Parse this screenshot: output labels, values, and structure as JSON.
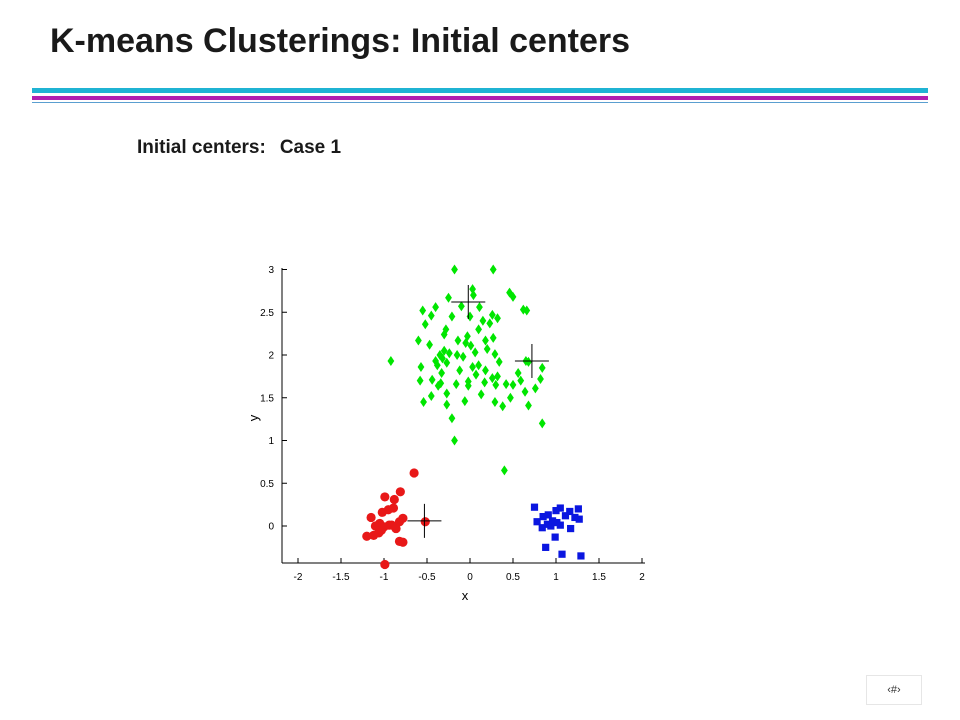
{
  "slide": {
    "title": "K-means Clusterings: Initial centers",
    "subtitle_left": "Initial centers:",
    "subtitle_right": "Case 1",
    "page_number": "‹#›"
  },
  "colors": {
    "title_rule_cyan": "#1fb3d3",
    "title_rule_magenta": "#b020b0",
    "cluster_red": "#e81818",
    "cluster_green": "#00e600",
    "cluster_blue": "#0a16e0",
    "center_marker": "#000000"
  },
  "chart_data": {
    "type": "scatter",
    "title": "",
    "xlabel": "x",
    "ylabel": "y",
    "xlim": [
      -2.1,
      2.0
    ],
    "ylim": [
      -0.45,
      3.0
    ],
    "xticks": [
      -2,
      -1.5,
      -1,
      -0.5,
      0,
      0.5,
      1,
      1.5,
      2
    ],
    "xtick_labels": [
      "-2",
      "-1.5",
      "-1",
      "-0.5",
      "0",
      "0.5",
      "1",
      "1.5",
      "2"
    ],
    "yticks": [
      0,
      0.5,
      1,
      1.5,
      2,
      2.5,
      3
    ],
    "ytick_labels": [
      "0",
      "0.5",
      "1",
      "1.5",
      "2",
      "2.5",
      "3"
    ],
    "grid": false,
    "series": [
      {
        "marker": "circle",
        "color": "#e81818",
        "points": [
          [
            -0.65,
            0.62
          ],
          [
            -0.81,
            0.4
          ],
          [
            -0.88,
            0.31
          ],
          [
            -0.99,
            0.34
          ],
          [
            -0.95,
            0.19
          ],
          [
            -0.89,
            0.21
          ],
          [
            -1.02,
            0.16
          ],
          [
            -1.15,
            0.1
          ],
          [
            -0.78,
            0.09
          ],
          [
            -0.82,
            0.05
          ],
          [
            -1.05,
            0.03
          ],
          [
            -0.94,
            0.01
          ],
          [
            -1.0,
            -0.01
          ],
          [
            -1.1,
            0.0
          ],
          [
            -0.86,
            -0.03
          ],
          [
            -1.06,
            -0.08
          ],
          [
            -1.12,
            -0.11
          ],
          [
            -1.2,
            -0.12
          ],
          [
            -0.82,
            -0.18
          ],
          [
            -0.78,
            -0.19
          ],
          [
            -0.99,
            -0.45
          ],
          [
            -0.52,
            0.05
          ],
          [
            -0.91,
            0.01
          ],
          [
            -1.03,
            -0.05
          ]
        ]
      },
      {
        "marker": "diamond",
        "color": "#00e600",
        "points": [
          [
            -0.18,
            3.0
          ],
          [
            0.27,
            3.0
          ],
          [
            0.03,
            2.77
          ],
          [
            0.46,
            2.73
          ],
          [
            0.5,
            2.68
          ],
          [
            -0.25,
            2.67
          ],
          [
            0.04,
            2.7
          ],
          [
            -0.4,
            2.56
          ],
          [
            -0.1,
            2.57
          ],
          [
            0.11,
            2.56
          ],
          [
            0.62,
            2.53
          ],
          [
            0.66,
            2.52
          ],
          [
            -0.55,
            2.52
          ],
          [
            -0.45,
            2.46
          ],
          [
            0.26,
            2.47
          ],
          [
            -0.21,
            2.45
          ],
          [
            0.0,
            2.45
          ],
          [
            0.32,
            2.43
          ],
          [
            0.15,
            2.4
          ],
          [
            0.23,
            2.37
          ],
          [
            -0.52,
            2.36
          ],
          [
            0.1,
            2.3
          ],
          [
            -0.28,
            2.3
          ],
          [
            -0.3,
            2.24
          ],
          [
            -0.03,
            2.22
          ],
          [
            0.27,
            2.2
          ],
          [
            -0.6,
            2.17
          ],
          [
            0.18,
            2.17
          ],
          [
            -0.14,
            2.17
          ],
          [
            -0.05,
            2.14
          ],
          [
            -0.47,
            2.12
          ],
          [
            0.01,
            2.11
          ],
          [
            0.2,
            2.07
          ],
          [
            -0.3,
            2.05
          ],
          [
            0.06,
            2.03
          ],
          [
            -0.24,
            2.02
          ],
          [
            0.29,
            2.01
          ],
          [
            -0.35,
            2.0
          ],
          [
            -0.15,
            2.0
          ],
          [
            -0.32,
            1.96
          ],
          [
            -0.08,
            1.98
          ],
          [
            -0.4,
            1.93
          ],
          [
            0.34,
            1.92
          ],
          [
            0.65,
            1.93
          ],
          [
            0.68,
            1.92
          ],
          [
            -0.92,
            1.93
          ],
          [
            -0.27,
            1.91
          ],
          [
            -0.38,
            1.88
          ],
          [
            0.03,
            1.86
          ],
          [
            -0.57,
            1.86
          ],
          [
            -0.12,
            1.82
          ],
          [
            0.18,
            1.82
          ],
          [
            -0.33,
            1.79
          ],
          [
            0.56,
            1.79
          ],
          [
            0.84,
            1.85
          ],
          [
            0.07,
            1.77
          ],
          [
            0.32,
            1.75
          ],
          [
            0.26,
            1.73
          ],
          [
            -0.44,
            1.71
          ],
          [
            0.82,
            1.72
          ],
          [
            -0.58,
            1.7
          ],
          [
            0.59,
            1.7
          ],
          [
            -0.02,
            1.69
          ],
          [
            0.17,
            1.68
          ],
          [
            0.42,
            1.66
          ],
          [
            -0.16,
            1.66
          ],
          [
            0.3,
            1.65
          ],
          [
            0.5,
            1.65
          ],
          [
            -0.37,
            1.64
          ],
          [
            -0.02,
            1.64
          ],
          [
            0.76,
            1.61
          ],
          [
            0.64,
            1.57
          ],
          [
            -0.27,
            1.55
          ],
          [
            0.13,
            1.54
          ],
          [
            -0.45,
            1.52
          ],
          [
            0.47,
            1.5
          ],
          [
            -0.54,
            1.45
          ],
          [
            -0.06,
            1.46
          ],
          [
            0.29,
            1.45
          ],
          [
            -0.27,
            1.42
          ],
          [
            0.68,
            1.41
          ],
          [
            0.38,
            1.4
          ],
          [
            -0.21,
            1.26
          ],
          [
            0.84,
            1.2
          ],
          [
            -0.18,
            1.0
          ],
          [
            0.4,
            0.65
          ],
          [
            -0.34,
            1.67
          ],
          [
            0.1,
            1.88
          ]
        ]
      },
      {
        "marker": "square",
        "color": "#0a16e0",
        "points": [
          [
            0.75,
            0.22
          ],
          [
            1.05,
            0.21
          ],
          [
            1.26,
            0.2
          ],
          [
            1.0,
            0.18
          ],
          [
            1.16,
            0.17
          ],
          [
            0.91,
            0.13
          ],
          [
            0.85,
            0.11
          ],
          [
            1.22,
            0.1
          ],
          [
            1.27,
            0.08
          ],
          [
            0.78,
            0.05
          ],
          [
            0.96,
            0.06
          ],
          [
            1.01,
            0.04
          ],
          [
            0.9,
            0.02
          ],
          [
            1.05,
            0.01
          ],
          [
            0.84,
            -0.02
          ],
          [
            1.17,
            -0.03
          ],
          [
            0.99,
            -0.13
          ],
          [
            0.88,
            -0.25
          ],
          [
            1.07,
            -0.33
          ],
          [
            1.29,
            -0.35
          ],
          [
            0.94,
            0.0
          ],
          [
            1.11,
            0.12
          ]
        ]
      }
    ],
    "centers": [
      [
        -0.02,
        2.62
      ],
      [
        0.72,
        1.93
      ],
      [
        -0.53,
        0.06
      ]
    ]
  }
}
